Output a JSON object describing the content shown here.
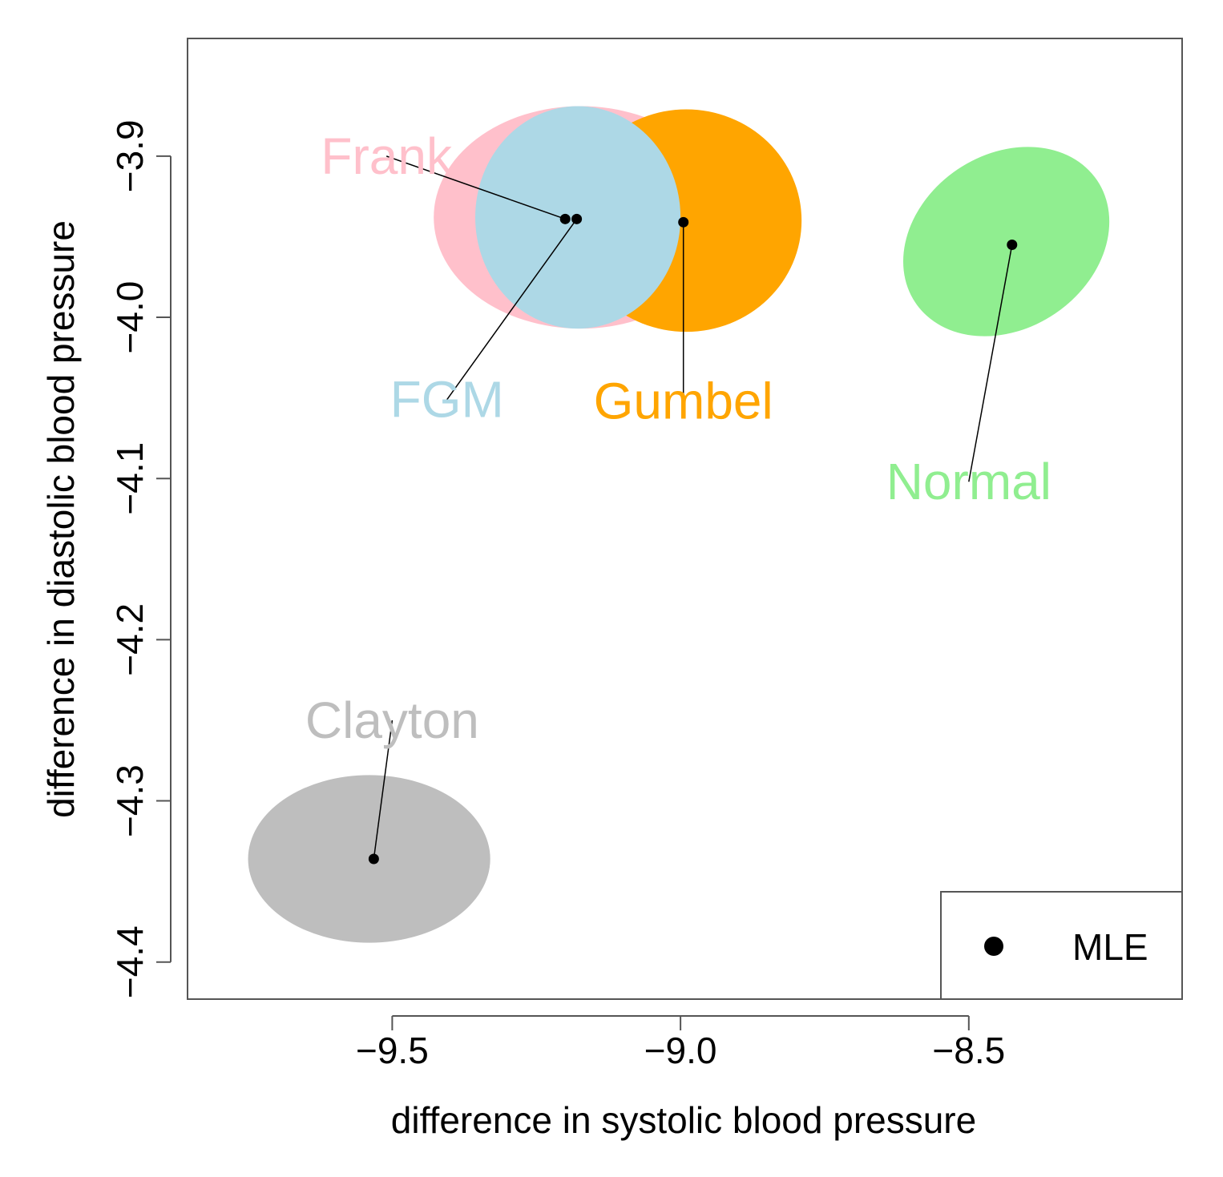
{
  "chart_data": {
    "type": "scatter",
    "title": "",
    "xlabel": "difference in systolic blood pressure",
    "ylabel": "difference in diastolic blood pressure",
    "xlim": [
      -9.855,
      -8.13
    ],
    "ylim": [
      -4.423,
      -3.827
    ],
    "xticks": [
      -9.5,
      -9.0,
      -8.5
    ],
    "xtick_labels": [
      "−9.5",
      "−9.0",
      "−8.5"
    ],
    "yticks": [
      -3.9,
      -4.0,
      -4.1,
      -4.2,
      -4.3,
      -4.4
    ],
    "ytick_labels": [
      "−3.9",
      "−4.0",
      "−4.1",
      "−4.2",
      "−4.3",
      "−4.4"
    ],
    "legend": {
      "label": "MLE",
      "marker": "filled-circle",
      "position": "bottom-right"
    },
    "series": [
      {
        "name": "Frank",
        "color": "#FFC0CB",
        "mle": [
          -9.2,
          -3.939
        ],
        "region": {
          "cx": -9.173,
          "cy": -3.938,
          "rx": 0.255,
          "ry": 0.069,
          "angle": 0
        },
        "label_pos": [
          -9.51,
          -3.9
        ]
      },
      {
        "name": "Gumbel",
        "color": "#FFA500",
        "mle": [
          -8.995,
          -3.941
        ],
        "region": {
          "cx": -8.99,
          "cy": -3.94,
          "rx": 0.2,
          "ry": 0.069,
          "angle": 0
        },
        "label_pos": [
          -8.995,
          -4.052
        ]
      },
      {
        "name": "FGM",
        "color": "#ADD8E6",
        "mle": [
          -9.18,
          -3.939
        ],
        "region": {
          "cx": -9.178,
          "cy": -3.938,
          "rx": 0.178,
          "ry": 0.069,
          "angle": 0
        },
        "label_pos": [
          -9.405,
          -4.051
        ]
      },
      {
        "name": "Normal",
        "color": "#90EE90",
        "mle": [
          -8.425,
          -3.955
        ],
        "region": {
          "cx": -8.435,
          "cy": -3.953,
          "rx": 0.19,
          "ry": 0.054,
          "angle": -34
        },
        "label_pos": [
          -8.5,
          -4.102
        ]
      },
      {
        "name": "Clayton",
        "color": "#BEBEBE",
        "mle": [
          -9.532,
          -4.336
        ],
        "region": {
          "cx": -9.54,
          "cy": -4.336,
          "rx": 0.21,
          "ry": 0.052,
          "angle": 0
        },
        "label_pos": [
          -9.5,
          -4.25
        ]
      }
    ]
  }
}
